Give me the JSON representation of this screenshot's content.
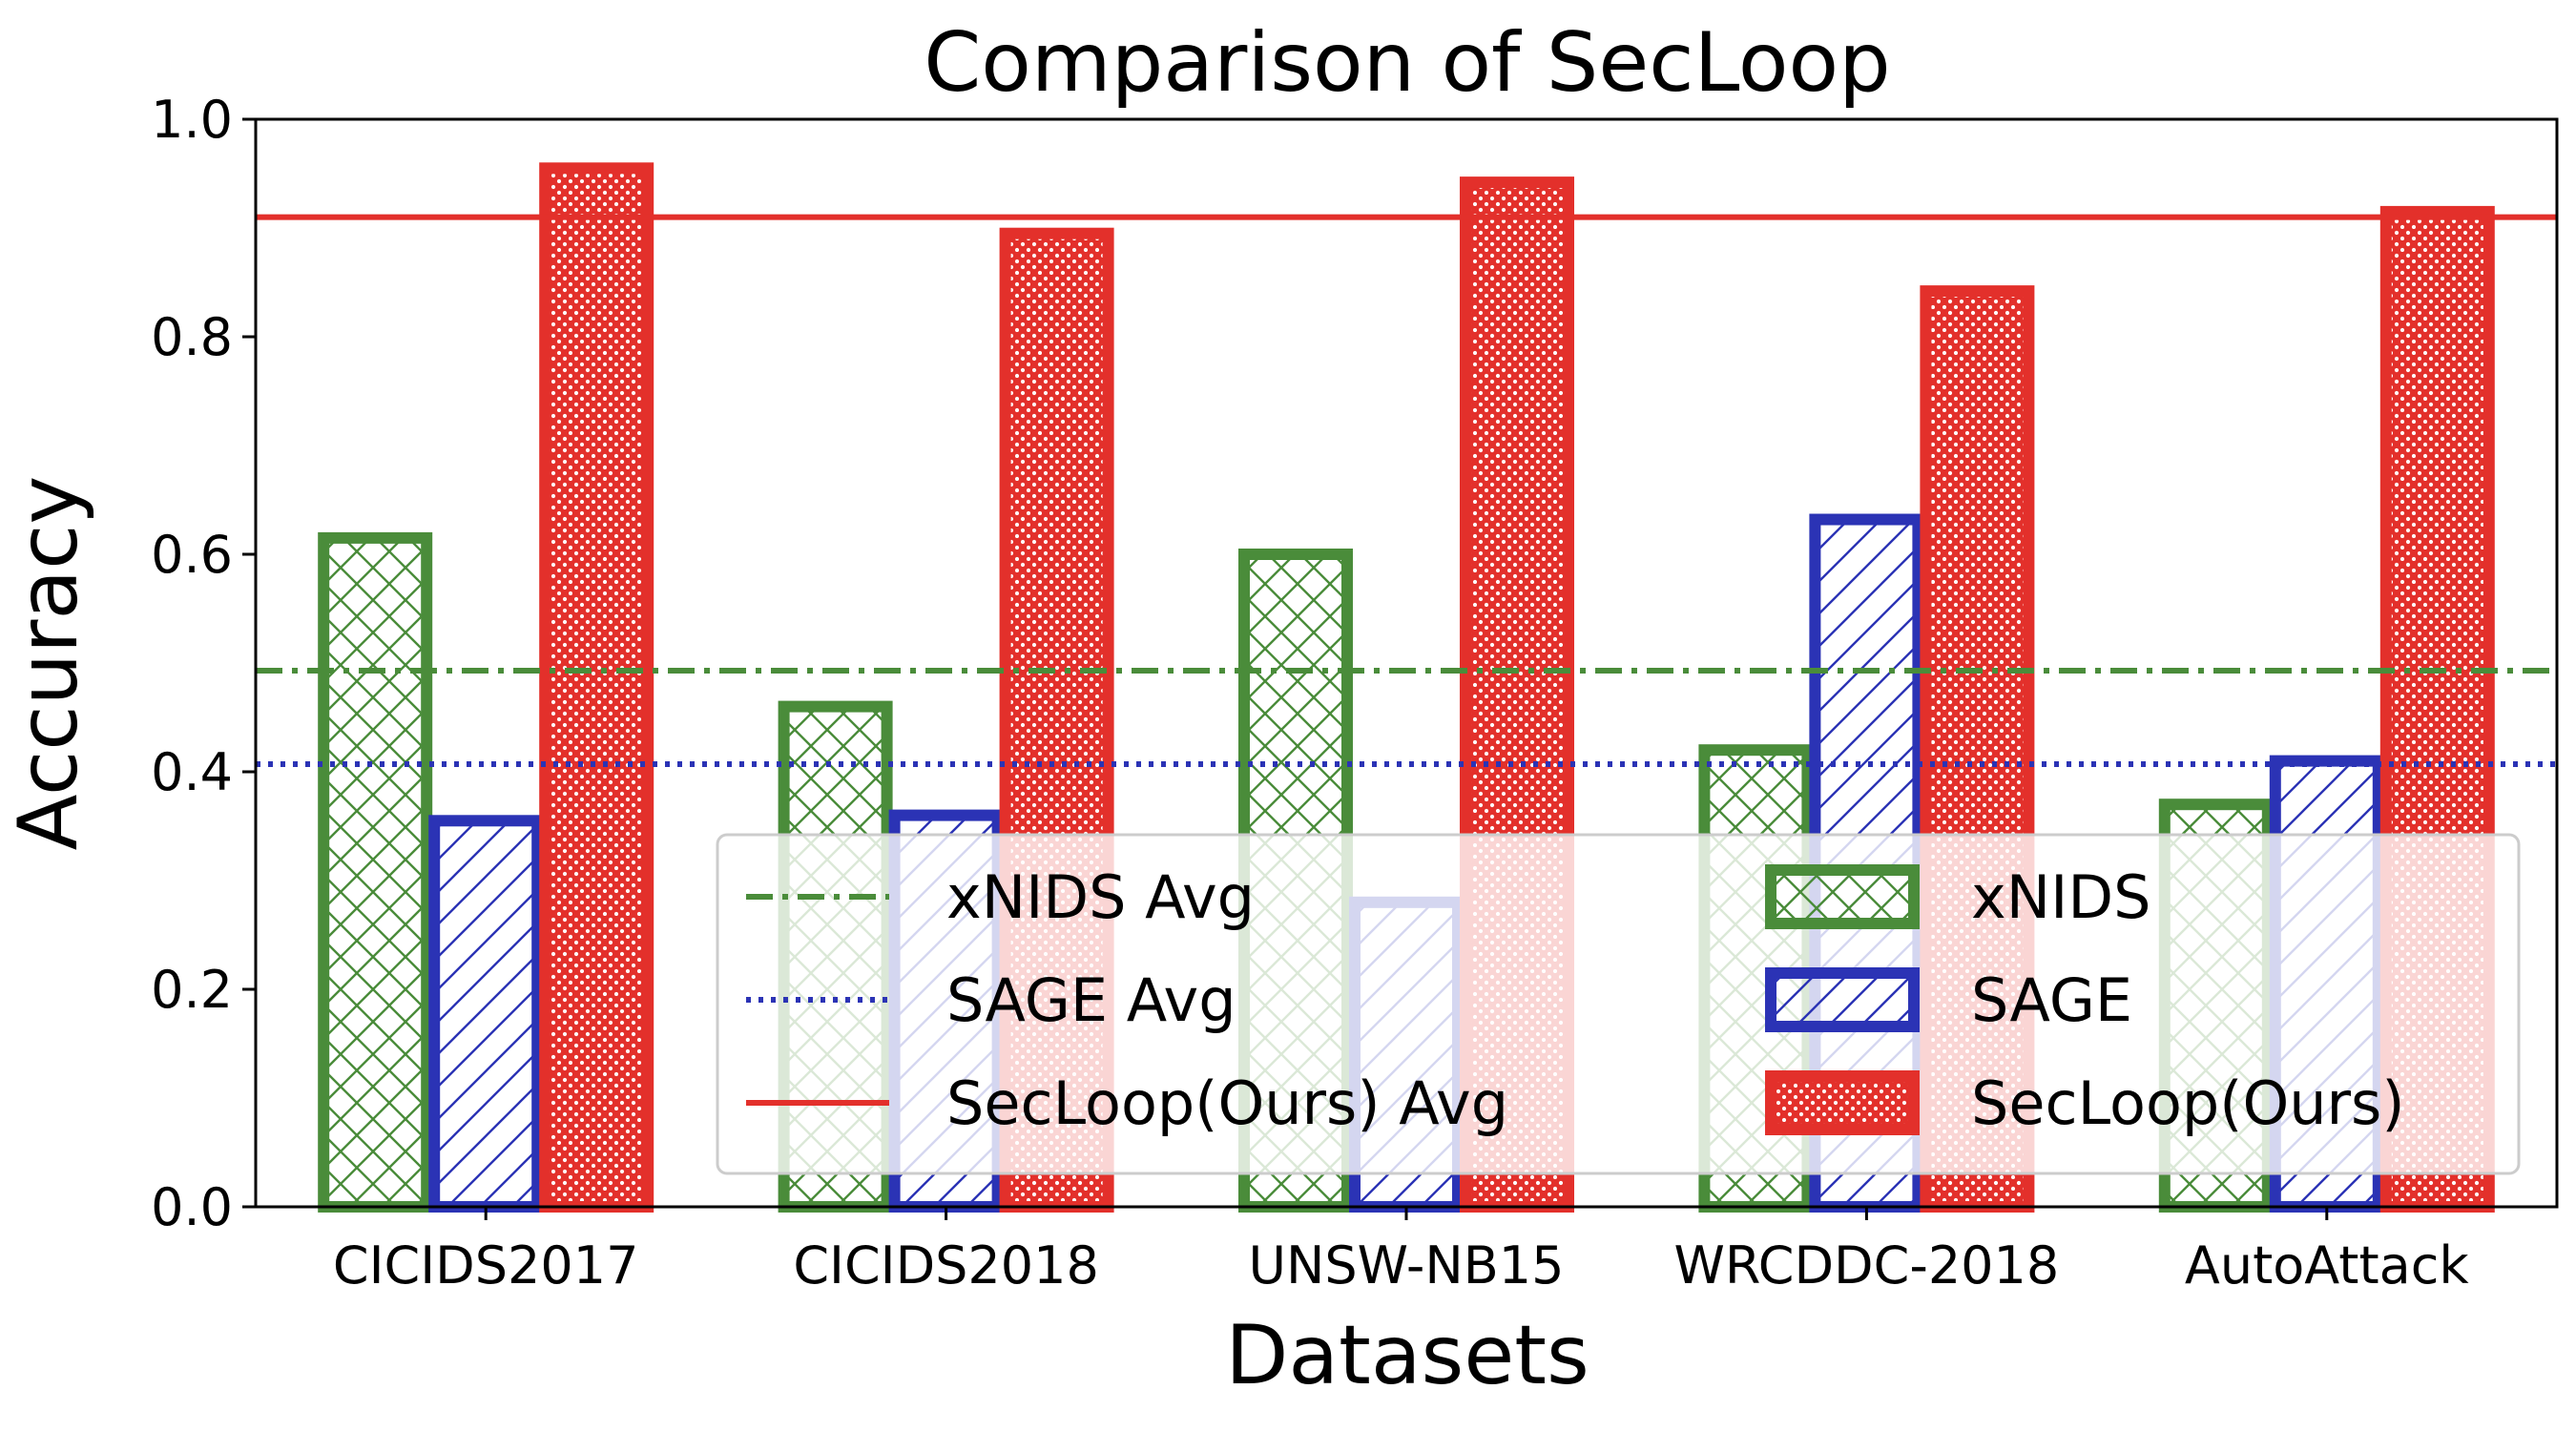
{
  "chart_data": {
    "type": "bar",
    "title": "Comparison of SecLoop",
    "xlabel": "Datasets",
    "ylabel": "Accuracy",
    "ylim": [
      0,
      1
    ],
    "yticks": [
      "0.0",
      "0.2",
      "0.4",
      "0.6",
      "0.8",
      "1.0"
    ],
    "categories": [
      "CICIDS2017",
      "CICIDS2018",
      "UNSW-NB15",
      "WRCDDC-2018",
      "AutoAttack"
    ],
    "series": [
      {
        "name": "xNIDS",
        "values": [
          0.615,
          0.46,
          0.6,
          0.42,
          0.37
        ],
        "color": "#4a8c3a",
        "pattern": "crosshatch"
      },
      {
        "name": "SAGE",
        "values": [
          0.355,
          0.36,
          0.28,
          0.632,
          0.41
        ],
        "color": "#2b33b5",
        "pattern": "diagonal"
      },
      {
        "name": "SecLoop(Ours)",
        "values": [
          0.955,
          0.895,
          0.942,
          0.842,
          0.915
        ],
        "color": "#e3302b",
        "pattern": "stars"
      }
    ],
    "reference_lines": [
      {
        "name": "xNIDS Avg",
        "value": 0.493,
        "color": "#4a8c3a",
        "style": "dashdot"
      },
      {
        "name": "SAGE Avg",
        "value": 0.407,
        "color": "#2b33b5",
        "style": "dotted"
      },
      {
        "name": "SecLoop(Ours) Avg",
        "value": 0.91,
        "color": "#e3302b",
        "style": "solid"
      }
    ],
    "legend": {
      "placement": "lower-right",
      "entries": [
        "xNIDS Avg",
        "SAGE Avg",
        "SecLoop(Ours) Avg",
        "xNIDS",
        "SAGE",
        "SecLoop(Ours)"
      ]
    }
  }
}
